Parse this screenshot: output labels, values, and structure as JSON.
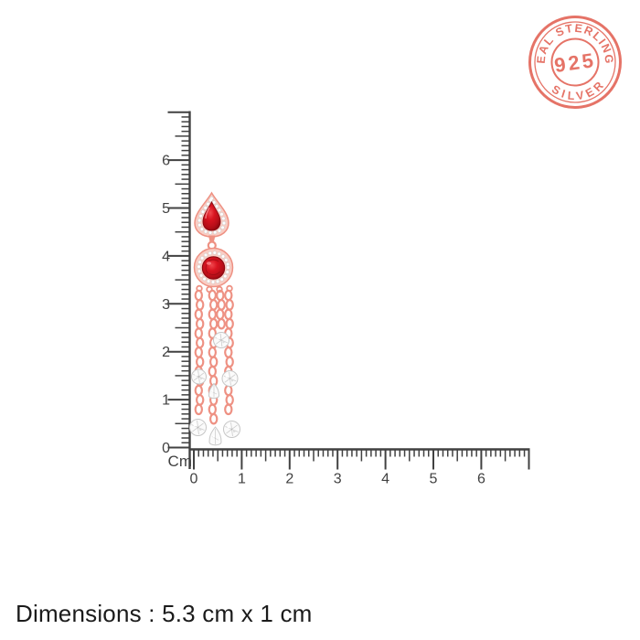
{
  "badge": {
    "arc_top_text": "REAL STERLING",
    "arc_bottom_text": "SILVER",
    "center_text": "925",
    "color": "#e4695c"
  },
  "ruler": {
    "unit_label": "Cm",
    "color": "#414141",
    "vertical_labels": [
      "0",
      "1",
      "2",
      "3",
      "4",
      "5",
      "6"
    ],
    "horizontal_labels": [
      "0",
      "1",
      "2",
      "3",
      "4",
      "5",
      "6"
    ]
  },
  "product": {
    "name": "rose-gold-earring-red-stones-crystal-tassel-chains",
    "colors": {
      "rose_gold": "#ee9183",
      "rose_gold_light": "#f9cdc4",
      "rose_gold_deep": "#e07e70",
      "red_stone": "#d21320",
      "red_stone_dark": "#8a0911",
      "red_stone_bright": "#ef3a40",
      "crystal": "#fbfbfb",
      "crystal_edge": "#c6c6c6"
    }
  },
  "caption": {
    "text": "Dimensions : 5.3 cm x 1 cm"
  }
}
